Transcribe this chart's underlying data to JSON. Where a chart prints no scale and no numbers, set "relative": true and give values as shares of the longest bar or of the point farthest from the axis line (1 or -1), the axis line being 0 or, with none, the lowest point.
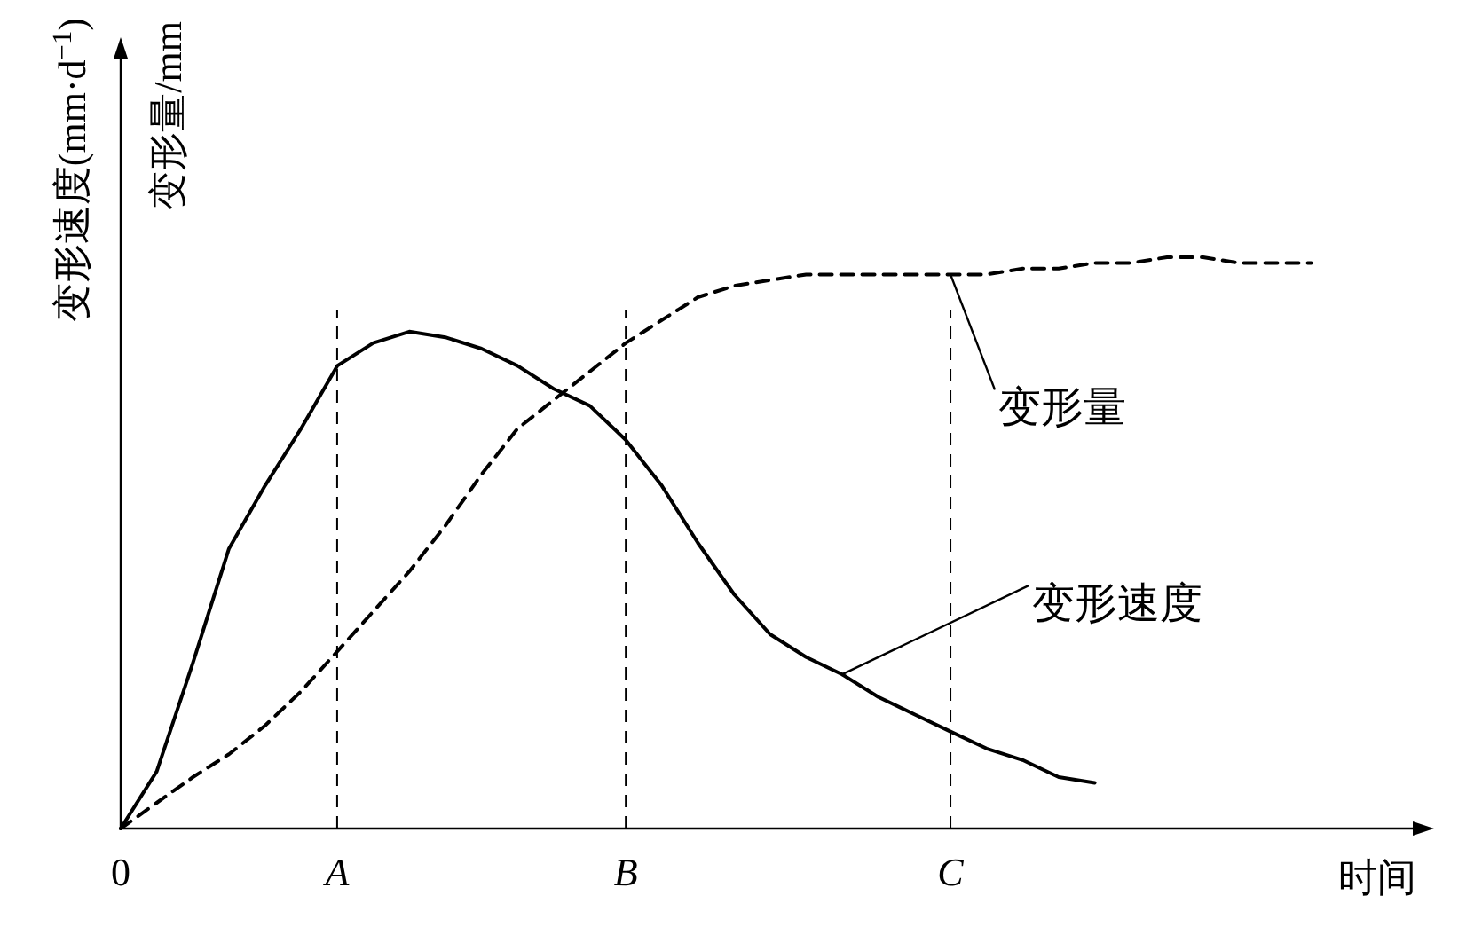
{
  "chart_data": {
    "type": "line",
    "relative": true,
    "xlabel": "时间",
    "ylabel": "变形速度(mm·d$^{−1}$)",
    "y2label": "变形量/mm",
    "categories": [
      "0",
      null,
      null,
      null,
      null,
      null,
      "A",
      null,
      null,
      null,
      null,
      null,
      null,
      null,
      "B",
      null,
      null,
      null,
      null,
      null,
      null,
      null,
      null,
      "C",
      null,
      null,
      null,
      null,
      null,
      null,
      null,
      null,
      null,
      null,
      null,
      null,
      null
    ],
    "grid": false,
    "ref_lines": [
      {
        "axis": "x",
        "value": "A",
        "line_style": "dashed",
        "color": "#000000"
      },
      {
        "axis": "x",
        "value": "B",
        "line_style": "dashed",
        "color": "#000000"
      },
      {
        "axis": "x",
        "value": "C",
        "line_style": "dashed",
        "color": "#000000"
      }
    ],
    "annotations": [
      "变形量",
      "变形速度"
    ],
    "series": [
      {
        "color": "#000000",
        "line_style": "solid",
        "values": [
          0,
          0.1,
          0.29,
          0.49,
          0.6,
          0.7,
          0.81,
          0.85,
          0.87,
          0.86,
          0.84,
          0.81,
          0.77,
          0.74,
          0.68,
          0.6,
          0.5,
          0.41,
          0.34,
          0.3,
          0.27,
          0.23,
          0.2,
          0.17,
          0.14,
          0.12,
          0.09,
          0.08,
          null,
          null,
          null,
          null,
          null,
          null,
          null,
          null,
          null
        ]
      },
      {
        "color": "#000000",
        "line_style": "dashed",
        "values": [
          0,
          0.045,
          0.09,
          0.13,
          0.18,
          0.24,
          0.31,
          0.38,
          0.45,
          0.53,
          0.62,
          0.7,
          0.75,
          0.8,
          0.85,
          0.89,
          0.93,
          0.95,
          0.96,
          0.97,
          0.97,
          0.97,
          0.97,
          0.97,
          0.97,
          0.98,
          0.98,
          0.99,
          0.99,
          1.0,
          1.0,
          0.99,
          0.99,
          0.99,
          null,
          null,
          null
        ]
      }
    ]
  }
}
